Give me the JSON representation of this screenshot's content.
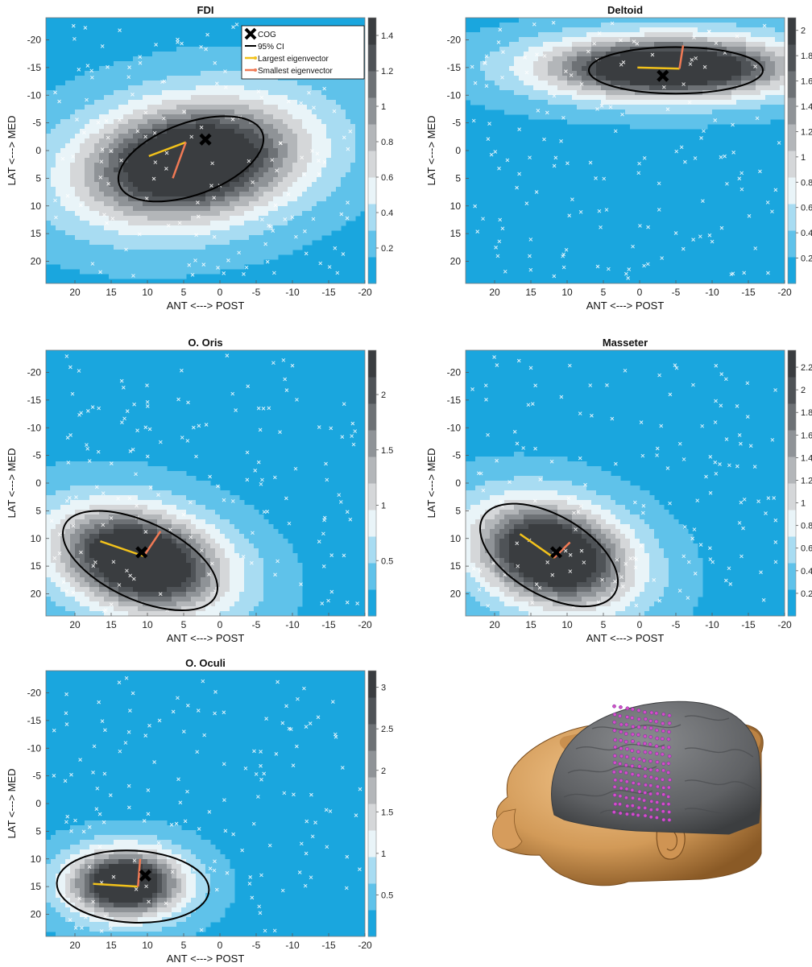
{
  "colors": {
    "background_level": "#1aa6de",
    "colormap": [
      "#1aa6de",
      "#5fc2ea",
      "#a8dcf2",
      "#e9f4f8",
      "#d5d7d9",
      "#b3b6b9",
      "#8f9397",
      "#6d7175",
      "#4f5357",
      "#3a3d40"
    ],
    "ellipse": "#000000",
    "largest_eigenvector": "#f2c21b",
    "smallest_eigenvector": "#f07a55",
    "cog_marker": "#000000",
    "sample_points": "#ffffff"
  },
  "legend": {
    "cog": "COG",
    "ci": "95% CI",
    "largest": "Largest eigenvector",
    "smallest": "Smallest eigenvector"
  },
  "chart_data": [
    {
      "type": "heatmap",
      "title": "FDI",
      "xlabel": "ANT <---> POST",
      "ylabel": "LAT <---> MED",
      "x_ticks": [
        20,
        15,
        10,
        5,
        0,
        -5,
        -10,
        -15,
        -20
      ],
      "y_ticks": [
        -20,
        -15,
        -10,
        -5,
        0,
        5,
        10,
        15,
        20
      ],
      "xlim": [
        24,
        -20
      ],
      "ylim": [
        -24,
        24
      ],
      "colorbar_ticks": [
        0.2,
        0.4,
        0.6,
        0.8,
        1,
        1.2,
        1.4
      ],
      "colorbar_range": [
        0,
        1.5
      ],
      "hotspot": {
        "center": [
          4,
          2
        ],
        "spread": [
          9,
          6
        ],
        "peak": 1.5,
        "tilt": -15
      },
      "cog": [
        2,
        -2
      ],
      "ellipse": {
        "center": [
          4,
          1.5
        ],
        "semi_axes": [
          10.5,
          6.5
        ],
        "angle_deg": -20
      },
      "largest_eigenvector": {
        "from": [
          4.7,
          -1.5
        ],
        "to": [
          9.8,
          1
        ]
      },
      "smallest_eigenvector": {
        "from": [
          4.7,
          -1.5
        ],
        "to": [
          6.5,
          5
        ]
      }
    },
    {
      "type": "heatmap",
      "title": "Deltoid",
      "xlabel": "ANT <---> POST",
      "ylabel": "LAT <---> MED",
      "x_ticks": [
        20,
        15,
        10,
        5,
        0,
        -5,
        -10,
        -15,
        -20
      ],
      "y_ticks": [
        -20,
        -15,
        -10,
        -5,
        0,
        5,
        10,
        15,
        20
      ],
      "xlim": [
        24,
        -20
      ],
      "ylim": [
        -24,
        24
      ],
      "colorbar_ticks": [
        0.2,
        0.4,
        0.6,
        0.8,
        1,
        1.2,
        1.4,
        1.6,
        1.8,
        2
      ],
      "colorbar_range": [
        0,
        2.1
      ],
      "hotspot": {
        "center": [
          -4,
          -15
        ],
        "spread": [
          10,
          3.2
        ],
        "peak": 2.1,
        "tilt": 0
      },
      "cog": [
        -3.2,
        -13.5
      ],
      "ellipse": {
        "center": [
          -5,
          -14.5
        ],
        "semi_axes": [
          12,
          4.2
        ],
        "angle_deg": 0
      },
      "largest_eigenvector": {
        "from": [
          -5.5,
          -14.8
        ],
        "to": [
          0.3,
          -15
        ]
      },
      "smallest_eigenvector": {
        "from": [
          -5.5,
          -14.8
        ],
        "to": [
          -6,
          -19
        ]
      }
    },
    {
      "type": "heatmap",
      "title": "O. Oris",
      "xlabel": "ANT <---> POST",
      "ylabel": "LAT <---> MED",
      "x_ticks": [
        20,
        15,
        10,
        5,
        0,
        -5,
        -10,
        -15,
        -20
      ],
      "y_ticks": [
        -20,
        -15,
        -10,
        -5,
        0,
        5,
        10,
        15,
        20
      ],
      "xlim": [
        24,
        -20
      ],
      "ylim": [
        -24,
        24
      ],
      "colorbar_ticks": [
        0.5,
        1,
        1.5,
        2
      ],
      "colorbar_range": [
        0,
        2.4
      ],
      "hotspot": {
        "center": [
          11,
          14
        ],
        "spread": [
          7,
          5
        ],
        "peak": 2.4,
        "tilt": 25
      },
      "cog": [
        10.8,
        12.5
      ],
      "ellipse": {
        "center": [
          11,
          14
        ],
        "semi_axes": [
          11.5,
          7
        ],
        "angle_deg": 25
      },
      "largest_eigenvector": {
        "from": [
          10.5,
          13.2
        ],
        "to": [
          16.5,
          10.5
        ]
      },
      "smallest_eigenvector": {
        "from": [
          10.5,
          13.2
        ],
        "to": [
          8.2,
          8.7
        ]
      }
    },
    {
      "type": "heatmap",
      "title": "Masseter",
      "xlabel": "ANT <---> POST",
      "ylabel": "LAT <---> MED",
      "x_ticks": [
        20,
        15,
        10,
        5,
        0,
        -5,
        -10,
        -15,
        -20
      ],
      "y_ticks": [
        -20,
        -15,
        -10,
        -5,
        0,
        5,
        10,
        15,
        20
      ],
      "xlim": [
        24,
        -20
      ],
      "ylim": [
        -24,
        24
      ],
      "colorbar_ticks": [
        0.2,
        0.4,
        0.6,
        0.8,
        1,
        1.2,
        1.4,
        1.6,
        1.8,
        2,
        2.2
      ],
      "colorbar_range": [
        0,
        2.35
      ],
      "hotspot": {
        "center": [
          12,
          13
        ],
        "spread": [
          6.5,
          5
        ],
        "peak": 2.35,
        "tilt": 30
      },
      "cog": [
        11.5,
        12.5
      ],
      "ellipse": {
        "center": [
          12.5,
          13
        ],
        "semi_axes": [
          10.5,
          7.2
        ],
        "angle_deg": 30
      },
      "largest_eigenvector": {
        "from": [
          11.8,
          13.5
        ],
        "to": [
          16.5,
          9.2
        ]
      },
      "smallest_eigenvector": {
        "from": [
          11.8,
          13.5
        ],
        "to": [
          9.6,
          10.7
        ]
      }
    },
    {
      "type": "heatmap",
      "title": "O. Oculi",
      "xlabel": "ANT <---> POST",
      "ylabel": "LAT <---> MED",
      "x_ticks": [
        20,
        15,
        10,
        5,
        0,
        -5,
        -10,
        -15,
        -20
      ],
      "y_ticks": [
        -20,
        -15,
        -10,
        -5,
        0,
        5,
        10,
        15,
        20
      ],
      "xlim": [
        24,
        -20
      ],
      "ylim": [
        -24,
        24
      ],
      "colorbar_ticks": [
        0.5,
        1,
        1.5,
        2,
        2.5,
        3
      ],
      "colorbar_range": [
        0,
        3.2
      ],
      "hotspot": {
        "center": [
          13,
          14.5
        ],
        "spread": [
          4.5,
          3.5
        ],
        "peak": 3.2,
        "tilt": 0
      },
      "cog": [
        10.3,
        13
      ],
      "ellipse": {
        "center": [
          12,
          15
        ],
        "semi_axes": [
          10.5,
          6.5
        ],
        "angle_deg": 3
      },
      "largest_eigenvector": {
        "from": [
          11.3,
          15
        ],
        "to": [
          17.5,
          14.5
        ]
      },
      "smallest_eigenvector": {
        "from": [
          11.3,
          15
        ],
        "to": [
          11,
          10
        ]
      }
    }
  ],
  "head_render": {
    "skin_color": "#d9a86a",
    "brain_color": "#6d6f72",
    "grid_color": "#d64ec6"
  }
}
